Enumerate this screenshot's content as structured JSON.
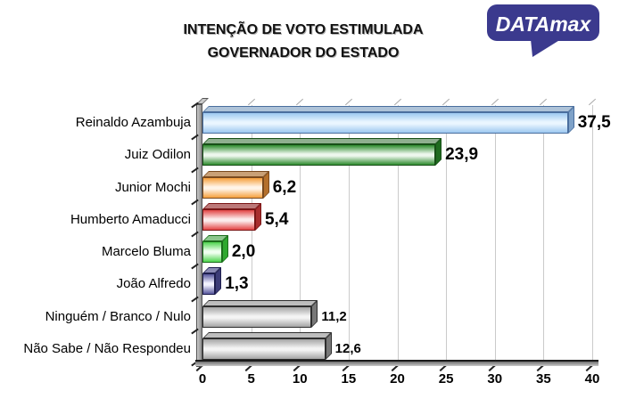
{
  "title": {
    "line1": "INTENÇÃO DE VOTO ESTIMULADA",
    "line2": "GOVERNADOR DO ESTADO"
  },
  "logo": {
    "brand_bold": "DATA",
    "brand_rest": "max",
    "bubble_color": "#3B3A8E",
    "text_color": "#FFFFFF"
  },
  "colors": {
    "grid": "#CBCBCB",
    "grid_tick": "#A8A8A8",
    "axis": "#1A1A1A",
    "tick": "#222222",
    "wall_light": "#C9C9C9",
    "wall_dark": "#8E8E8E",
    "wall_border": "#555555",
    "floor_dark": "#6E6E6E",
    "floor_light": "#C8C8C8"
  },
  "chart_data": {
    "type": "bar",
    "orientation": "horizontal",
    "title": "INTENÇÃO DE VOTO ESTIMULADA — GOVERNADOR DO ESTADO",
    "categories": [
      "Reinaldo Azambuja",
      "Juiz Odilon",
      "Junior Mochi",
      "Humberto Amaducci",
      "Marcelo Bluma",
      "João Alfredo",
      "Ninguém / Branco / Nulo",
      "Não Sabe / Não Respondeu"
    ],
    "values": [
      37.5,
      23.9,
      6.2,
      5.4,
      2.0,
      1.3,
      11.2,
      12.6
    ],
    "value_labels": [
      "37,5",
      "23,9",
      "6,2",
      "5,4",
      "2,0",
      "1,3",
      "11,2",
      "12,6"
    ],
    "value_label_small": [
      false,
      false,
      false,
      false,
      false,
      false,
      true,
      true
    ],
    "is_candidate": [
      true,
      true,
      true,
      true,
      true,
      true,
      false,
      false
    ],
    "xlim": [
      0,
      40
    ],
    "xticks": [
      0,
      5,
      10,
      15,
      20,
      25,
      30,
      35,
      40
    ],
    "grid": true,
    "legend": false,
    "series_colors": [
      {
        "name": "light-blue",
        "main": "#9CC8F0",
        "light": "#EAF6FF",
        "dark": "#4A6E9E",
        "top": "#AEC3D8",
        "cap": "#7FA2C8"
      },
      {
        "name": "green",
        "main": "#2E8B2E",
        "light": "#EDF7ED",
        "dark": "#174F17",
        "top": "#8FAF8F",
        "cap": "#1F6B1F"
      },
      {
        "name": "orange",
        "main": "#F6A03C",
        "light": "#FFF4E8",
        "dark": "#7A4A1E",
        "top": "#C9A076",
        "cap": "#B4702C"
      },
      {
        "name": "red",
        "main": "#E24444",
        "light": "#FCECEC",
        "dark": "#7A1616",
        "top": "#BC7878",
        "cap": "#A82E2E"
      },
      {
        "name": "bright-green",
        "main": "#4ED44E",
        "light": "#F0FFF0",
        "dark": "#1C6E1C",
        "top": "#8CC68C",
        "cap": "#2FA82F"
      },
      {
        "name": "navy",
        "main": "#56569C",
        "light": "#F2F2FF",
        "dark": "#1E1E4E",
        "top": "#8A8AB4",
        "cap": "#3C3C78"
      },
      {
        "name": "gray",
        "main": "#A4A4A4",
        "light": "#F4F4F4",
        "dark": "#2E2E2E",
        "top": "#BDBDBD",
        "cap": "#787878"
      },
      {
        "name": "gray",
        "main": "#A4A4A4",
        "light": "#F4F4F4",
        "dark": "#2E2E2E",
        "top": "#BDBDBD",
        "cap": "#787878"
      }
    ]
  }
}
